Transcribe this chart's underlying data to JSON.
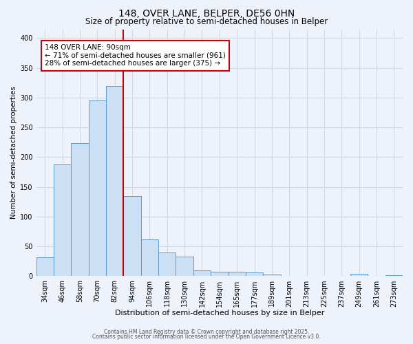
{
  "title": "148, OVER LANE, BELPER, DE56 0HN",
  "subtitle": "Size of property relative to semi-detached houses in Belper",
  "xlabel": "Distribution of semi-detached houses by size in Belper",
  "ylabel": "Number of semi-detached properties",
  "categories": [
    "34sqm",
    "46sqm",
    "58sqm",
    "70sqm",
    "82sqm",
    "94sqm",
    "106sqm",
    "118sqm",
    "130sqm",
    "142sqm",
    "154sqm",
    "165sqm",
    "177sqm",
    "189sqm",
    "201sqm",
    "213sqm",
    "225sqm",
    "237sqm",
    "249sqm",
    "261sqm",
    "273sqm"
  ],
  "values": [
    32,
    188,
    224,
    295,
    320,
    135,
    62,
    40,
    33,
    10,
    8,
    7,
    6,
    3,
    1,
    1,
    1,
    1,
    4,
    1,
    2
  ],
  "bar_color": "#cce0f5",
  "bar_edge_color": "#5b9bd5",
  "vline_x_idx": 5,
  "vline_color": "#cc0000",
  "annotation_title": "148 OVER LANE: 90sqm",
  "annotation_line1": "← 71% of semi-detached houses are smaller (961)",
  "annotation_line2": "28% of semi-detached houses are larger (375) →",
  "annotation_box_edge_color": "#cc0000",
  "ylim": [
    0,
    415
  ],
  "yticks": [
    0,
    50,
    100,
    150,
    200,
    250,
    300,
    350,
    400
  ],
  "footer1": "Contains HM Land Registry data © Crown copyright and database right 2025.",
  "footer2": "Contains public sector information licensed under the Open Government Licence v3.0.",
  "bg_color": "#eef2fa",
  "grid_color": "#d0d8e8",
  "title_fontsize": 10,
  "subtitle_fontsize": 8.5,
  "xlabel_fontsize": 8,
  "ylabel_fontsize": 7.5,
  "tick_fontsize": 7,
  "footer_fontsize": 5.5,
  "annot_fontsize": 7.5
}
